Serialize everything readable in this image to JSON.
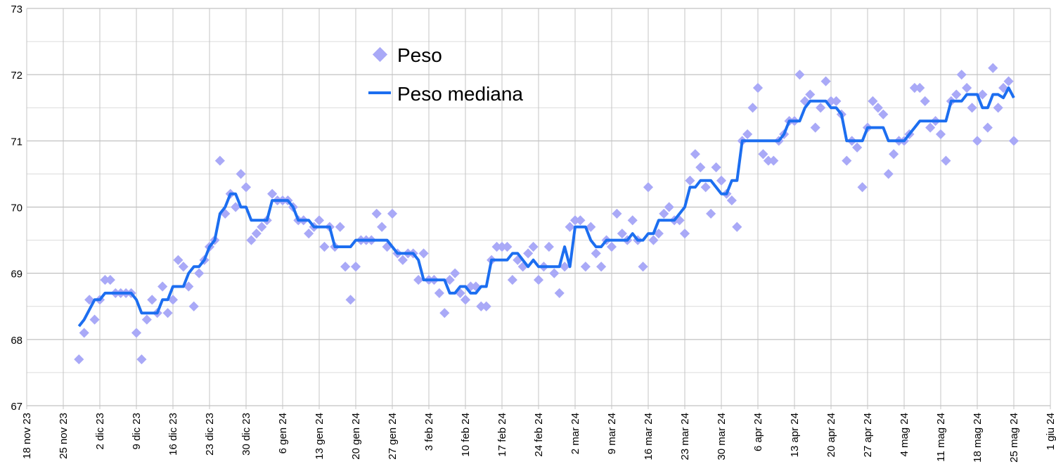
{
  "chart_data": {
    "type": "scatter+line",
    "title": "",
    "xlabel": "",
    "ylabel": "",
    "ylim": [
      67,
      73
    ],
    "yticks": [
      "67",
      "68",
      "69",
      "70",
      "71",
      "72",
      "73"
    ],
    "x_start_date": "18 nov 23",
    "x_unit": "days since 18 nov 23",
    "xlim_days": [
      0,
      196
    ],
    "xticks": [
      "18 nov 23",
      "25 nov 23",
      "2 dic 23",
      "9 dic 23",
      "16 dic 23",
      "23 dic 23",
      "30 dic 23",
      "6 gen 24",
      "13 gen 24",
      "20 gen 24",
      "27 gen 24",
      "3 feb 24",
      "10 feb 24",
      "17 feb 24",
      "24 feb 24",
      "2 mar 24",
      "9 mar 24",
      "16 mar 24",
      "23 mar 24",
      "30 mar 24",
      "6 apr 24",
      "13 apr 24",
      "20 apr 24",
      "27 apr 24",
      "4 mag 24",
      "11 mag 24",
      "18 mag 24",
      "25 mag 24",
      "1 giu 24"
    ],
    "grid": true,
    "legend_position": "top-center",
    "series": [
      {
        "name": "Peso",
        "kind": "scatter",
        "color": "#a9a9f7",
        "first_day": 10,
        "values": [
          67.7,
          68.1,
          68.6,
          68.3,
          68.6,
          68.9,
          68.9,
          68.7,
          68.7,
          68.7,
          68.7,
          68.1,
          67.7,
          68.3,
          68.6,
          68.4,
          68.8,
          68.4,
          68.6,
          69.2,
          69.1,
          68.8,
          68.5,
          69.0,
          69.2,
          69.4,
          69.5,
          70.7,
          69.9,
          70.2,
          70.0,
          70.5,
          70.3,
          69.5,
          69.6,
          69.7,
          69.8,
          70.2,
          70.1,
          70.1,
          70.1,
          70.0,
          69.8,
          69.8,
          69.6,
          69.7,
          69.8,
          69.4,
          69.7,
          69.4,
          69.7,
          69.1,
          68.6,
          69.1,
          69.5,
          69.5,
          69.5,
          69.9,
          69.7,
          69.4,
          69.9,
          69.3,
          69.2,
          69.3,
          69.3,
          68.9,
          69.3,
          68.9,
          68.9,
          68.7,
          68.4,
          68.9,
          69.0,
          68.7,
          68.6,
          68.8,
          68.8,
          68.5,
          68.5,
          69.2,
          69.4,
          69.4,
          69.4,
          68.9,
          69.2,
          69.1,
          69.3,
          69.4,
          68.9,
          69.1,
          69.4,
          69.0,
          68.7,
          69.1,
          69.7,
          69.8,
          69.8,
          69.1,
          69.7,
          69.3,
          69.1,
          69.5,
          69.4,
          69.9,
          69.6,
          69.5,
          69.8,
          69.5,
          69.1,
          70.3,
          69.5,
          69.6,
          69.9,
          70.0,
          69.8,
          69.8,
          69.6,
          70.4,
          70.8,
          70.6,
          70.3,
          69.9,
          70.6,
          70.4,
          70.2,
          70.1,
          69.7,
          71.0,
          71.1,
          71.5,
          71.8,
          70.8,
          70.7,
          70.7,
          71.0,
          71.1,
          71.3,
          71.3,
          72.0,
          71.6,
          71.7,
          71.2,
          71.5,
          71.9,
          71.6,
          71.6,
          71.4,
          70.7,
          71.0,
          70.9,
          70.3,
          71.2,
          71.6,
          71.5,
          71.4,
          70.5,
          70.8,
          71.0,
          71.0,
          71.1,
          71.8,
          71.8,
          71.6,
          71.2,
          71.3,
          71.1,
          70.7,
          71.6,
          71.7,
          72.0,
          71.8,
          71.5,
          71.0,
          71.7,
          71.2,
          72.1,
          71.5,
          71.8,
          71.9,
          71.0
        ]
      },
      {
        "name": "Peso mediana",
        "kind": "line",
        "color": "#1c6ef0",
        "derived_from": "Peso",
        "rolling_median_window": 7
      }
    ]
  }
}
